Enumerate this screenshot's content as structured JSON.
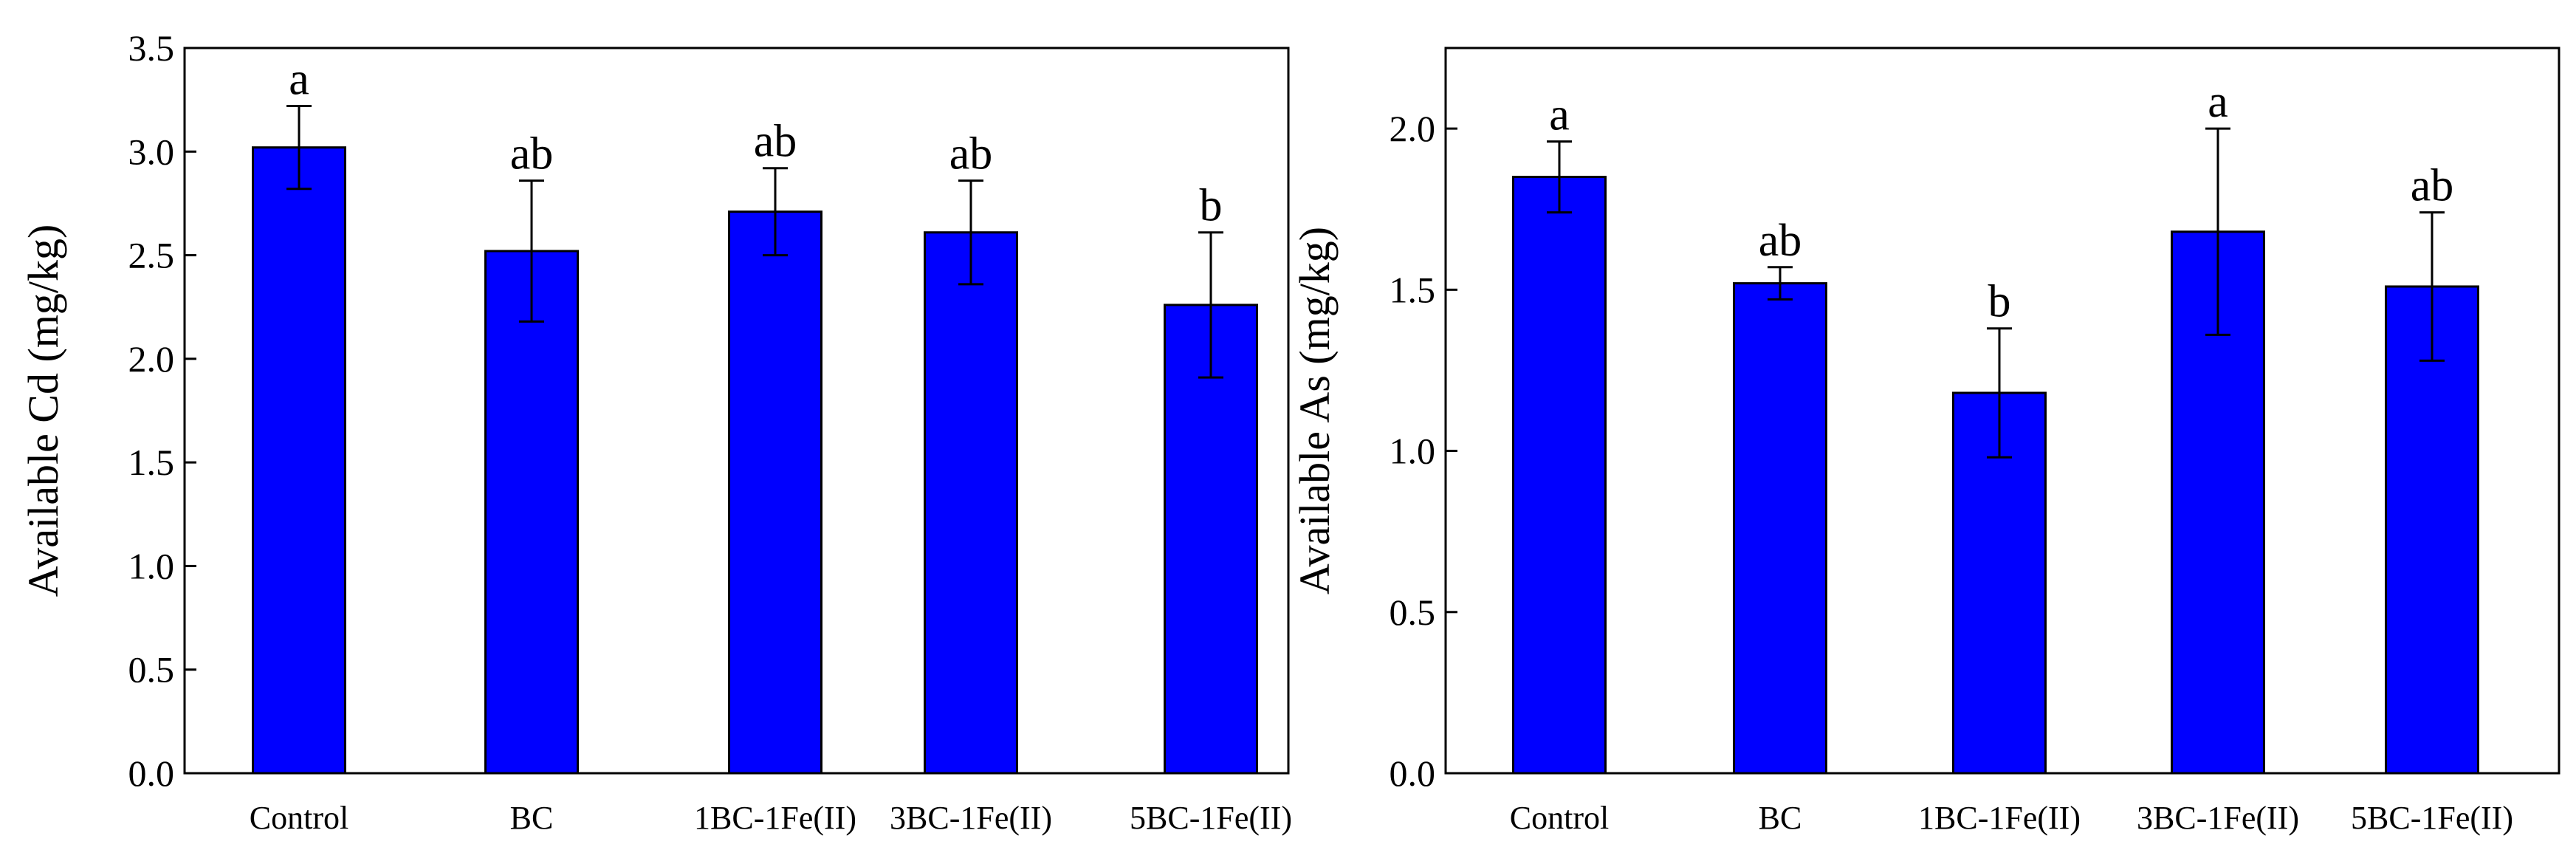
{
  "chart_data": [
    {
      "type": "bar",
      "title": "",
      "xlabel": "",
      "ylabel": "Available  Cd  (mg/kg)",
      "ylim": [
        0,
        3.5
      ],
      "yticks": [
        "0.0",
        "0.5",
        "1.0",
        "1.5",
        "2.0",
        "2.5",
        "3.0",
        "3.5"
      ],
      "categories": [
        "Control",
        "BC",
        "1BC-1Fe(II)",
        "3BC-1Fe(II)",
        "5BC-1Fe(II)"
      ],
      "values": [
        3.02,
        2.52,
        2.71,
        2.61,
        2.26
      ],
      "errors": [
        0.2,
        0.34,
        0.21,
        0.25,
        0.35
      ],
      "significance": [
        "a",
        "ab",
        "ab",
        "ab",
        "b"
      ],
      "bar_color": "#0000ff"
    },
    {
      "type": "bar",
      "title": "",
      "xlabel": "",
      "ylabel": "Available  As (mg/kg)",
      "ylim": [
        0,
        2.25
      ],
      "yticks": [
        "0.0",
        "0.5",
        "1.0",
        "1.5",
        "2.0"
      ],
      "categories": [
        "Control",
        "BC",
        "1BC-1Fe(II)",
        "3BC-1Fe(II)",
        "5BC-1Fe(II)"
      ],
      "values": [
        1.85,
        1.52,
        1.18,
        1.68,
        1.51
      ],
      "errors": [
        0.11,
        0.05,
        0.2,
        0.32,
        0.23
      ],
      "significance": [
        "a",
        "ab",
        "b",
        "a",
        "ab"
      ],
      "bar_color": "#0000ff"
    }
  ]
}
